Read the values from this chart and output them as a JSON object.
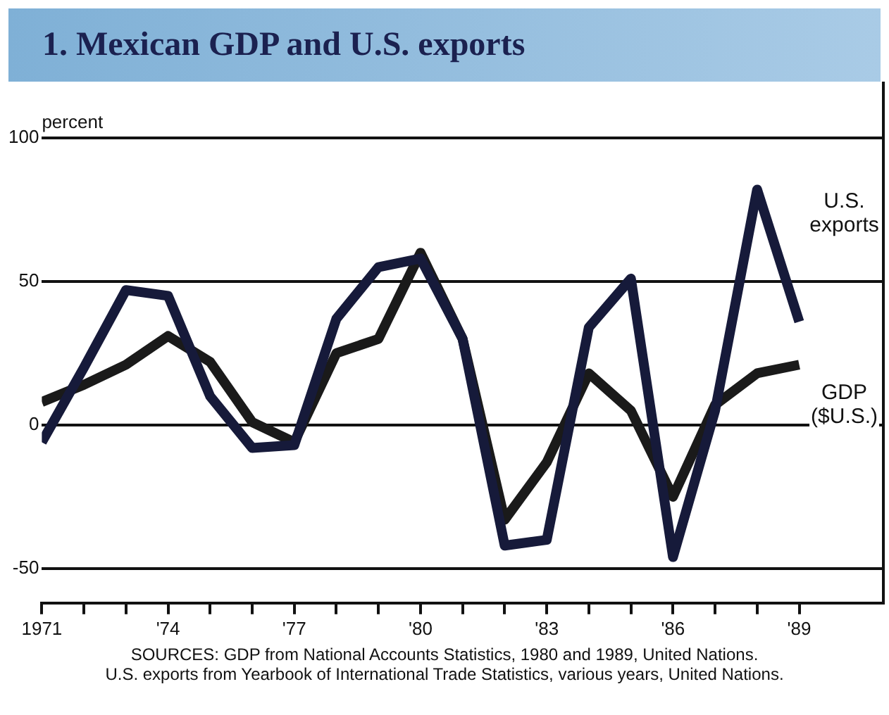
{
  "chart_data": {
    "type": "line",
    "title": "1. Mexican GDP and U.S. exports",
    "ylabel": "percent",
    "x": [
      1971,
      1972,
      1973,
      1974,
      1975,
      1976,
      1977,
      1978,
      1979,
      1980,
      1981,
      1982,
      1983,
      1984,
      1985,
      1986,
      1987,
      1988,
      1989
    ],
    "series": [
      {
        "name": "U.S. exports",
        "color": "#161a3a",
        "values": [
          -6,
          20,
          47,
          45,
          10,
          -8,
          -7,
          37,
          55,
          58,
          30,
          -42,
          -40,
          34,
          51,
          -46,
          5,
          82,
          36
        ]
      },
      {
        "name": "GDP ($U.S.)",
        "color": "#1a1a1a",
        "values": [
          8,
          14,
          21,
          31,
          22,
          1,
          -6,
          25,
          30,
          60,
          30,
          -33,
          -13,
          18,
          5,
          -25,
          7,
          18,
          21
        ]
      }
    ],
    "xlim": [
      1971,
      1991
    ],
    "xticks": [
      {
        "value": 1971,
        "label": "1971"
      },
      {
        "value": 1972,
        "label": null
      },
      {
        "value": 1973,
        "label": null
      },
      {
        "value": 1974,
        "label": "'74"
      },
      {
        "value": 1975,
        "label": null
      },
      {
        "value": 1976,
        "label": null
      },
      {
        "value": 1977,
        "label": "'77"
      },
      {
        "value": 1978,
        "label": null
      },
      {
        "value": 1979,
        "label": null
      },
      {
        "value": 1980,
        "label": "'80"
      },
      {
        "value": 1981,
        "label": null
      },
      {
        "value": 1982,
        "label": null
      },
      {
        "value": 1983,
        "label": "'83"
      },
      {
        "value": 1984,
        "label": null
      },
      {
        "value": 1985,
        "label": null
      },
      {
        "value": 1986,
        "label": "'86"
      },
      {
        "value": 1987,
        "label": null
      },
      {
        "value": 1988,
        "label": null
      },
      {
        "value": 1989,
        "label": "'89"
      }
    ],
    "ylim": [
      -62,
      100
    ],
    "yticks": [
      -50,
      0,
      50,
      100
    ],
    "grid": "y",
    "legend": false,
    "marker": "none",
    "line_style": "solid",
    "annotations": [
      "SOURCES: GDP from National Accounts Statistics, 1980 and 1989, United Nations.",
      "U.S. exports from Yearbook of International Trade Statistics, various years, United Nations."
    ]
  }
}
